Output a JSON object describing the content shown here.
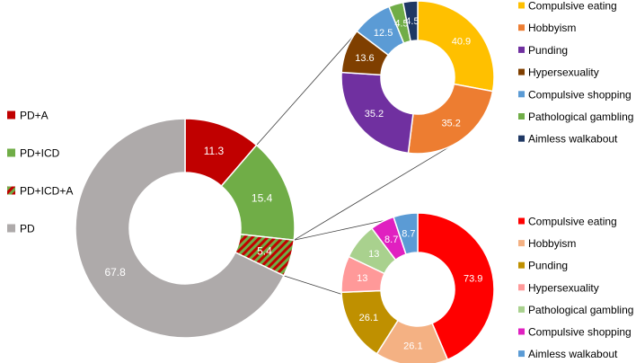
{
  "chart_data": [
    {
      "type": "pie",
      "variant": "donut",
      "legend_position": "left",
      "categories": [
        "PD+A",
        "PD+ICD",
        "PD+ICD+A",
        "PD"
      ],
      "values": [
        11.3,
        15.4,
        5.4,
        67.8
      ],
      "colors": [
        "#c00000",
        "#70ad47",
        "hatch:#c00000/#70ad47",
        "#aeaaaa"
      ],
      "label_color": "#ffffff"
    },
    {
      "type": "pie",
      "variant": "donut",
      "legend_position": "right",
      "categories": [
        "Compulsive eating",
        "Hobbyism",
        "Punding",
        "Hypersexuality",
        "Compulsive shopping",
        "Pathological gambling",
        "Aimless walkabout"
      ],
      "values": [
        40.9,
        35.2,
        35.2,
        13.6,
        12.5,
        4.5,
        4.5
      ],
      "colors": [
        "#ffc000",
        "#ed7d31",
        "#7030a0",
        "#7f3f00",
        "#5b9bd5",
        "#70ad47",
        "#1f3864"
      ],
      "label_color": "#ffffff"
    },
    {
      "type": "pie",
      "variant": "donut",
      "legend_position": "right",
      "categories": [
        "Compulsive eating",
        "Hobbyism",
        "Punding",
        "Hypersexuality",
        "Pathological gambling",
        "Compulsive shopping",
        "Aimless walkabout"
      ],
      "values": [
        73.9,
        26.1,
        26.1,
        13,
        13,
        8.7,
        8.7
      ],
      "colors": [
        "#ff0000",
        "#f4b183",
        "#bf9000",
        "#ff9999",
        "#a9d18e",
        "#e020c0",
        "#5b9bd5"
      ],
      "label_color": "#ffffff"
    }
  ]
}
